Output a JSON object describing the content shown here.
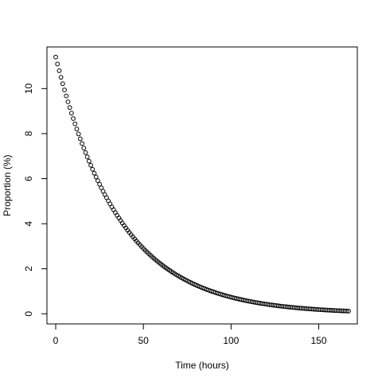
{
  "chart_data": {
    "type": "scatter",
    "title": "",
    "xlabel": "Time (hours)",
    "ylabel": "Proportion (%)",
    "xlim": [
      -5,
      172
    ],
    "ylim": [
      -0.45,
      11.85
    ],
    "xticks": [
      0,
      50,
      100,
      150
    ],
    "yticks": [
      0,
      2,
      4,
      6,
      8,
      10
    ],
    "xtick_labels": [
      "0",
      "50",
      "100",
      "150"
    ],
    "ytick_labels": [
      "0",
      "2",
      "4",
      "6",
      "8",
      "10"
    ],
    "grid": false,
    "marker": "open-circle",
    "series": [
      {
        "x": [
          0,
          1,
          2,
          3,
          4,
          5,
          6,
          7,
          8,
          9,
          10,
          11,
          12,
          13,
          14,
          15,
          16,
          17,
          18,
          19,
          20,
          21,
          22,
          23,
          24,
          25,
          26,
          27,
          28,
          29,
          30,
          31,
          32,
          33,
          34,
          35,
          36,
          37,
          38,
          39,
          40,
          41,
          42,
          43,
          44,
          45,
          46,
          47,
          48,
          49,
          50,
          51,
          52,
          53,
          54,
          55,
          56,
          57,
          58,
          59,
          60,
          61,
          62,
          63,
          64,
          65,
          66,
          67,
          68,
          69,
          70,
          71,
          72,
          73,
          74,
          75,
          76,
          77,
          78,
          79,
          80,
          81,
          82,
          83,
          84,
          85,
          86,
          87,
          88,
          89,
          90,
          91,
          92,
          93,
          94,
          95,
          96,
          97,
          98,
          99,
          100,
          101,
          102,
          103,
          104,
          105,
          106,
          107,
          108,
          109,
          110,
          111,
          112,
          113,
          114,
          115,
          116,
          117,
          118,
          119,
          120,
          121,
          122,
          123,
          124,
          125,
          126,
          127,
          128,
          129,
          130,
          131,
          132,
          133,
          134,
          135,
          136,
          137,
          138,
          139,
          140,
          141,
          142,
          143,
          144,
          145,
          146,
          147,
          148,
          149,
          150,
          151,
          152,
          153,
          154,
          155,
          156,
          157,
          158,
          159,
          160,
          161,
          162,
          163,
          164,
          165,
          166,
          167
        ],
        "y": [
          11.4,
          11.092,
          10.793,
          10.501,
          10.218,
          9.942,
          9.673,
          9.412,
          9.158,
          8.911,
          8.67,
          8.436,
          8.208,
          7.987,
          7.771,
          7.561,
          7.357,
          7.158,
          6.965,
          6.777,
          6.594,
          6.416,
          6.243,
          6.074,
          5.91,
          5.751,
          5.595,
          5.444,
          5.297,
          5.154,
          5.015,
          4.88,
          4.748,
          4.62,
          4.495,
          4.374,
          4.256,
          4.141,
          4.029,
          3.92,
          3.814,
          3.711,
          3.611,
          3.513,
          3.418,
          3.326,
          3.236,
          3.149,
          3.064,
          2.981,
          2.901,
          2.822,
          2.746,
          2.672,
          2.6,
          2.529,
          2.461,
          2.395,
          2.33,
          2.267,
          2.206,
          2.146,
          2.088,
          2.032,
          1.977,
          1.924,
          1.872,
          1.821,
          1.772,
          1.724,
          1.677,
          1.632,
          1.588,
          1.545,
          1.503,
          1.463,
          1.423,
          1.385,
          1.347,
          1.311,
          1.275,
          1.241,
          1.207,
          1.175,
          1.143,
          1.112,
          1.082,
          1.053,
          1.024,
          0.997,
          0.97,
          0.944,
          0.918,
          0.893,
          0.869,
          0.846,
          0.823,
          0.801,
          0.779,
          0.758,
          0.737,
          0.717,
          0.698,
          0.679,
          0.661,
          0.643,
          0.626,
          0.609,
          0.592,
          0.576,
          0.561,
          0.546,
          0.531,
          0.517,
          0.503,
          0.489,
          0.476,
          0.463,
          0.45,
          0.438,
          0.426,
          0.415,
          0.404,
          0.393,
          0.382,
          0.372,
          0.362,
          0.352,
          0.342,
          0.333,
          0.324,
          0.315,
          0.307,
          0.299,
          0.291,
          0.283,
          0.275,
          0.268,
          0.26,
          0.253,
          0.246,
          0.24,
          0.233,
          0.227,
          0.221,
          0.215,
          0.209,
          0.203,
          0.198,
          0.192,
          0.187,
          0.182,
          0.177,
          0.172,
          0.168,
          0.163,
          0.159,
          0.154,
          0.15,
          0.146,
          0.142,
          0.138,
          0.135,
          0.131,
          0.127,
          0.124,
          0.121,
          0.117
        ]
      }
    ]
  }
}
